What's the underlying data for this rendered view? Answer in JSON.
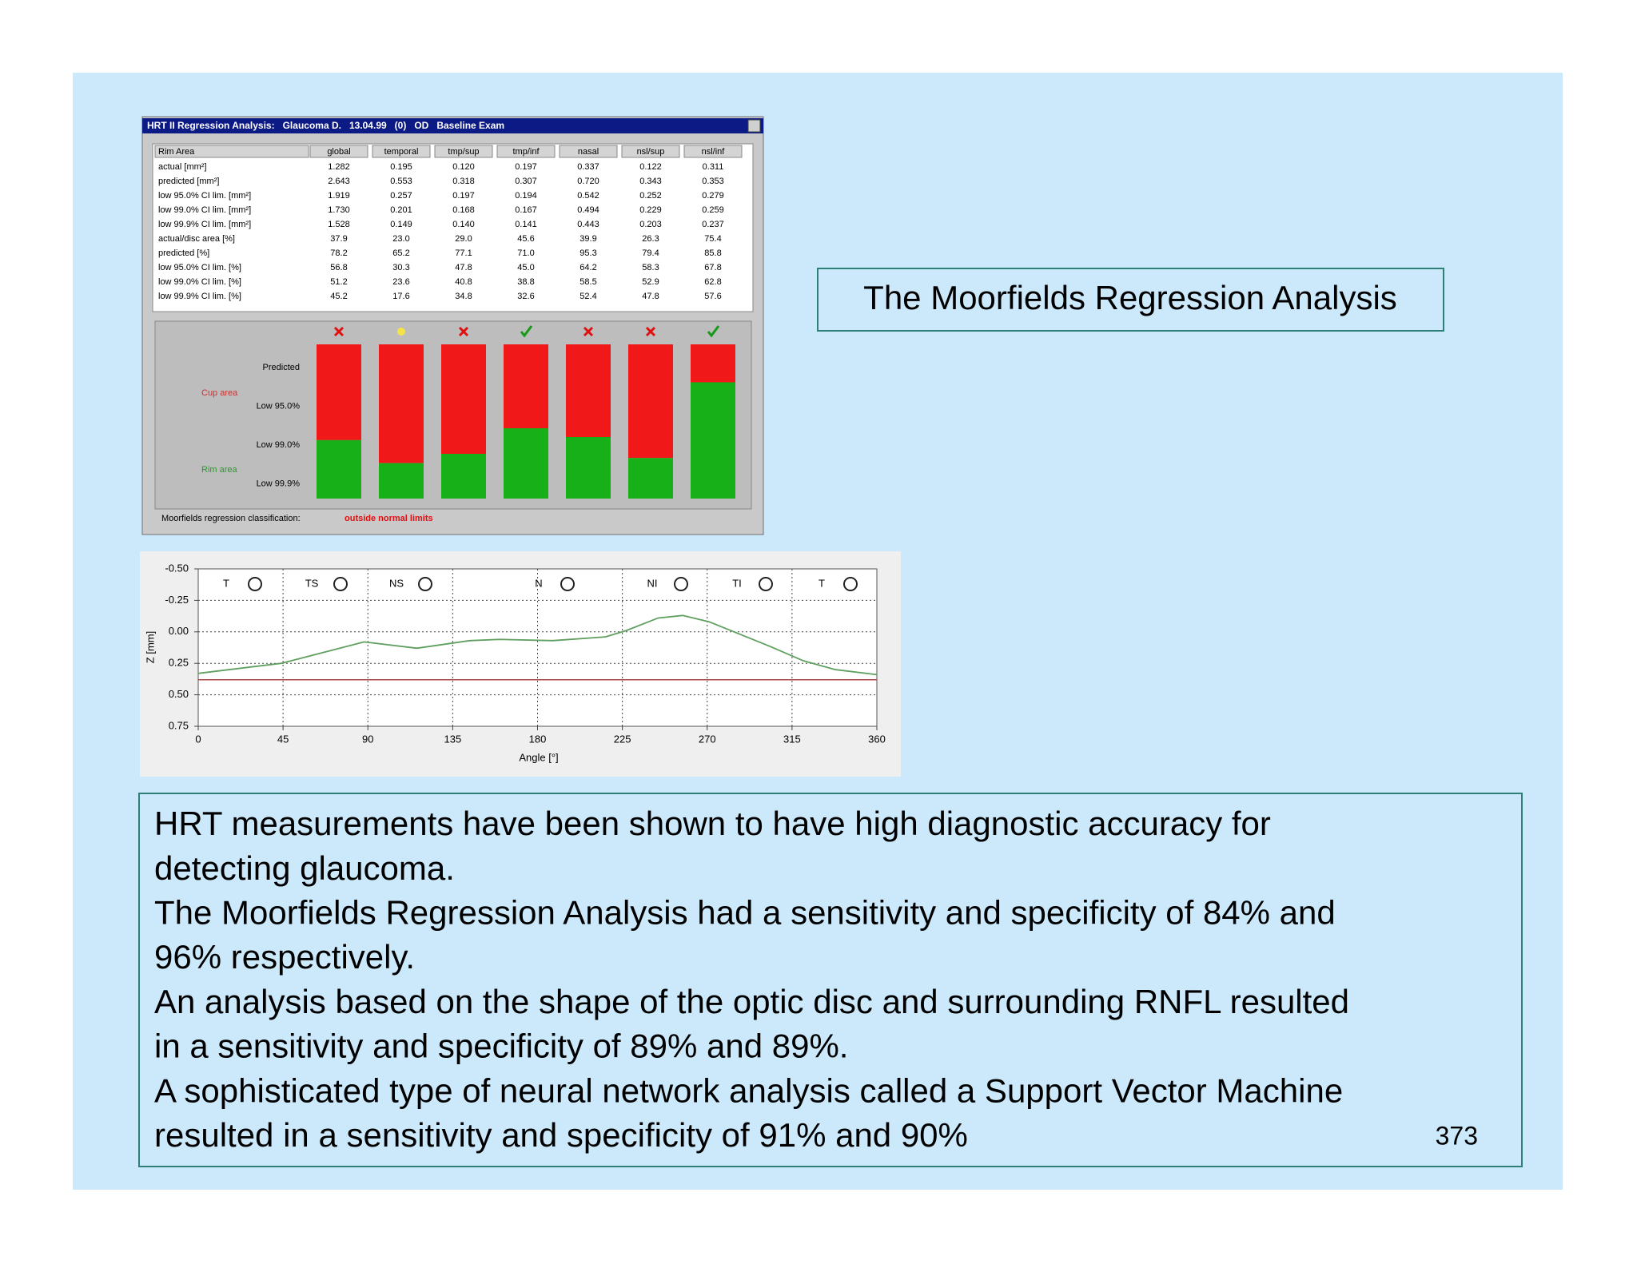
{
  "slide": {
    "title": "The Moorfields Regression Analysis",
    "body_lines": [
      "HRT measurements have been shown to have high diagnostic accuracy for",
      "detecting glaucoma.",
      "The Moorfields Regression Analysis had a sensitivity and specificity of 84% and",
      "96% respectively.",
      "An analysis based on the shape of the optic disc and surrounding RNFL resulted",
      "in a sensitivity and specificity of 89% and 89%.",
      "A sophisticated type of neural network analysis called a Support Vector Machine",
      "resulted in a sensitivity and specificity of 91% and 90%"
    ],
    "page_number": "373"
  },
  "regression_window": {
    "title_bar": "HRT II Regression Analysis:   Glaucoma D.   13.04.99   (0)   OD   Baseline Exam",
    "table": {
      "header": [
        "Rim Area",
        "global",
        "temporal",
        "tmp/sup",
        "tmp/inf",
        "nasal",
        "nsl/sup",
        "nsl/inf"
      ],
      "rows": [
        [
          "actual [mm²]",
          "1.282",
          "0.195",
          "0.120",
          "0.197",
          "0.337",
          "0.122",
          "0.311"
        ],
        [
          "predicted [mm²]",
          "2.643",
          "0.553",
          "0.318",
          "0.307",
          "0.720",
          "0.343",
          "0.353"
        ],
        [
          "low 95.0% CI lim. [mm²]",
          "1.919",
          "0.257",
          "0.197",
          "0.194",
          "0.542",
          "0.252",
          "0.279"
        ],
        [
          "low 99.0% CI lim. [mm²]",
          "1.730",
          "0.201",
          "0.168",
          "0.167",
          "0.494",
          "0.229",
          "0.259"
        ],
        [
          "low 99.9% CI lim. [mm²]",
          "1.528",
          "0.149",
          "0.140",
          "0.141",
          "0.443",
          "0.203",
          "0.237"
        ],
        [
          "actual/disc area [%]",
          "37.9",
          "23.0",
          "29.0",
          "45.6",
          "39.9",
          "26.3",
          "75.4"
        ],
        [
          "predicted [%]",
          "78.2",
          "65.2",
          "77.1",
          "71.0",
          "95.3",
          "79.4",
          "85.8"
        ],
        [
          "low 95.0% CI lim. [%]",
          "56.8",
          "30.3",
          "47.8",
          "45.0",
          "64.2",
          "58.3",
          "67.8"
        ],
        [
          "low 99.0% CI lim. [%]",
          "51.2",
          "23.6",
          "40.8",
          "38.8",
          "58.5",
          "52.9",
          "62.8"
        ],
        [
          "low 99.9% CI lim. [%]",
          "45.2",
          "17.6",
          "34.8",
          "32.6",
          "52.4",
          "47.8",
          "57.6"
        ]
      ]
    },
    "panel_labels": [
      "Predicted",
      "Low 95.0%",
      "Low 99.0%",
      "Low 99.9%"
    ],
    "cup_label": "Cup area",
    "rim_label": "Rim area",
    "classification_label": "Moorfields regression classification:",
    "classification": "outside normal limits"
  },
  "chart_data": {
    "type": "line",
    "x_label": "Angle [°]",
    "y_label": "Z [mm]",
    "sectors": [
      "T",
      "TS",
      "NS",
      "N",
      "NI",
      "TI",
      "T"
    ],
    "x": [
      0,
      44,
      88,
      116,
      144,
      160,
      188,
      216,
      227,
      244,
      257,
      271,
      304,
      321,
      338,
      360
    ],
    "series": [
      {
        "color": "#5f9f5f",
        "values": [
          0.33,
          0.25,
          0.08,
          0.13,
          0.07,
          0.06,
          0.07,
          0.04,
          -0.01,
          -0.11,
          -0.13,
          -0.08,
          0.12,
          0.23,
          0.3,
          0.34
        ]
      }
    ],
    "reference_line": {
      "value": 0.38,
      "color": "#a84848"
    },
    "xlim": [
      0,
      360
    ],
    "xticks": [
      0,
      45,
      90,
      135,
      180,
      225,
      270,
      315,
      360
    ],
    "ylim": [
      -0.5,
      0.75
    ],
    "yticks": [
      {
        "value": -0.5,
        "label": "-0.50"
      },
      {
        "value": -0.25,
        "label": "-0.25"
      },
      {
        "value": 0,
        "label": "0.00"
      },
      {
        "value": 0.25,
        "label": "0.25"
      },
      {
        "value": 0.5,
        "label": "0.50"
      },
      {
        "value": 0.75,
        "label": "0.75"
      }
    ],
    "grid": true
  }
}
